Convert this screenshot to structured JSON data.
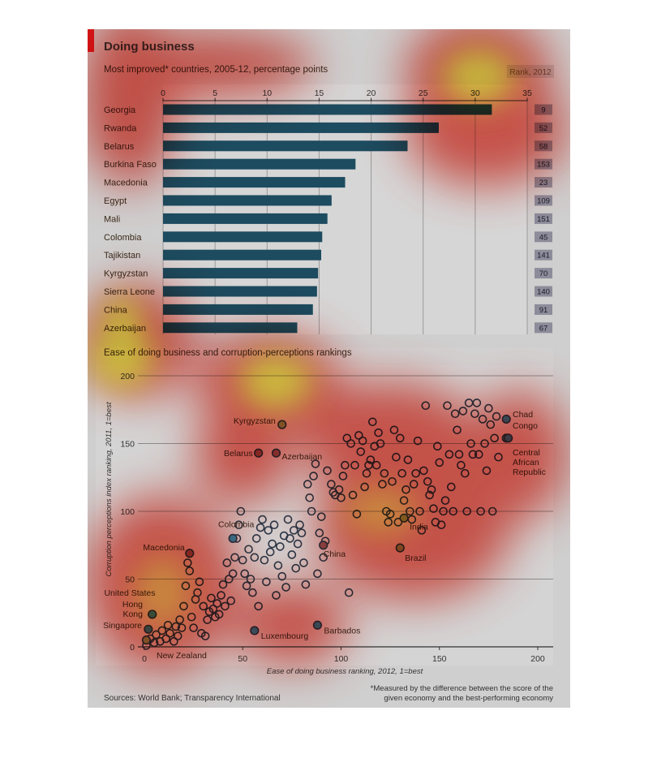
{
  "header": {
    "title": "Doing business",
    "subtitle": "Most improved* countries, 2005-12, percentage points",
    "rank_label": "Rank, 2012",
    "scatter_title": "Ease of doing business and corruption-perceptions rankings",
    "footnote": "*Measured by the difference between the score of the given economy and the best-performing economy",
    "sources": "Sources: World Bank; Transparency International"
  },
  "colors": {
    "panel_bg": "#c9c9c9",
    "bar": "#1d4b5f",
    "rank_box": "#8c8c9a",
    "accent_red": "#d7191c",
    "highlight_blue": "#3d8bb0",
    "highlight_green": "#8aa65c"
  },
  "chart_data": [
    {
      "type": "bar",
      "orientation": "horizontal",
      "categories": [
        "Georgia",
        "Rwanda",
        "Belarus",
        "Burkina Faso",
        "Macedonia",
        "Egypt",
        "Mali",
        "Colombia",
        "Tajikistan",
        "Kyrgyzstan",
        "Sierra Leone",
        "China",
        "Azerbaijan"
      ],
      "values": [
        31.6,
        26.5,
        23.5,
        18.5,
        17.5,
        16.2,
        15.8,
        15.3,
        15.2,
        14.9,
        14.8,
        14.4,
        12.9
      ],
      "ranks": [
        "9",
        "52",
        "58",
        "153",
        "23",
        "109",
        "151",
        "45",
        "141",
        "70",
        "140",
        "91",
        "67"
      ],
      "xlim": [
        0,
        35
      ],
      "xticks": [
        "0",
        "5",
        "10",
        "15",
        "20",
        "25",
        "30",
        "35"
      ]
    },
    {
      "type": "scatter",
      "xlabel": "Ease of doing business ranking, 2012, 1=best",
      "ylabel": "Corruption perceptions index ranking, 2011, 1=best",
      "xlim": [
        0,
        200
      ],
      "ylim": [
        0,
        200
      ],
      "xticks": [
        "0",
        "50",
        "100",
        "150",
        "200"
      ],
      "yticks": [
        "0",
        "50",
        "100",
        "150",
        "200"
      ],
      "labeled_points": [
        {
          "name": "Kyrgyzstan",
          "x": 70,
          "y": 164,
          "color": "green"
        },
        {
          "name": "Chad",
          "x": 184,
          "y": 168,
          "color": "blue"
        },
        {
          "name": "Congo",
          "x": 184,
          "y": 154,
          "color": "blue"
        },
        {
          "name": "Central African Republic",
          "x": 185,
          "y": 154,
          "color": "blue"
        },
        {
          "name": "Belarus",
          "x": 58,
          "y": 143,
          "color": "red"
        },
        {
          "name": "Azerbaijan",
          "x": 67,
          "y": 143,
          "color": "red"
        },
        {
          "name": "Colombia",
          "x": 45,
          "y": 80,
          "color": "blue"
        },
        {
          "name": "India",
          "x": 132,
          "y": 95,
          "color": "green"
        },
        {
          "name": "China",
          "x": 91,
          "y": 75,
          "color": "red"
        },
        {
          "name": "Brazil",
          "x": 130,
          "y": 73,
          "color": "green"
        },
        {
          "name": "Macedonia",
          "x": 23,
          "y": 69,
          "color": "red"
        },
        {
          "name": "United States",
          "x": 4,
          "y": 24,
          "color": "blue"
        },
        {
          "name": "Hong Kong",
          "x": 4,
          "y": 24,
          "color": "blue"
        },
        {
          "name": "Singapore",
          "x": 2,
          "y": 13,
          "color": "blue"
        },
        {
          "name": "New Zealand",
          "x": 1,
          "y": 5,
          "color": "green"
        },
        {
          "name": "Luxembourg",
          "x": 56,
          "y": 12,
          "color": "blue"
        },
        {
          "name": "Barbados",
          "x": 88,
          "y": 16,
          "color": "blue"
        }
      ],
      "points": [
        [
          1,
          1
        ],
        [
          3,
          6
        ],
        [
          5,
          3
        ],
        [
          6,
          9
        ],
        [
          8,
          4
        ],
        [
          9,
          12
        ],
        [
          11,
          6
        ],
        [
          12,
          16
        ],
        [
          13,
          10
        ],
        [
          15,
          4
        ],
        [
          16,
          15
        ],
        [
          17,
          8
        ],
        [
          18,
          20
        ],
        [
          19,
          14
        ],
        [
          20,
          30
        ],
        [
          21,
          45
        ],
        [
          22,
          62
        ],
        [
          23,
          56
        ],
        [
          24,
          22
        ],
        [
          25,
          14
        ],
        [
          26,
          35
        ],
        [
          27,
          40
        ],
        [
          28,
          48
        ],
        [
          29,
          10
        ],
        [
          30,
          30
        ],
        [
          31,
          8
        ],
        [
          32,
          20
        ],
        [
          33,
          26
        ],
        [
          34,
          36
        ],
        [
          35,
          28
        ],
        [
          36,
          22
        ],
        [
          37,
          32
        ],
        [
          38,
          24
        ],
        [
          39,
          38
        ],
        [
          40,
          46
        ],
        [
          41,
          30
        ],
        [
          42,
          62
        ],
        [
          43,
          50
        ],
        [
          44,
          34
        ],
        [
          45,
          54
        ],
        [
          46,
          66
        ],
        [
          47,
          80
        ],
        [
          48,
          90
        ],
        [
          49,
          100
        ],
        [
          50,
          64
        ],
        [
          51,
          54
        ],
        [
          52,
          45
        ],
        [
          53,
          72
        ],
        [
          54,
          50
        ],
        [
          55,
          40
        ],
        [
          56,
          66
        ],
        [
          57,
          80
        ],
        [
          58,
          30
        ],
        [
          59,
          88
        ],
        [
          60,
          94
        ],
        [
          61,
          64
        ],
        [
          62,
          48
        ],
        [
          63,
          86
        ],
        [
          64,
          70
        ],
        [
          65,
          76
        ],
        [
          66,
          90
        ],
        [
          67,
          38
        ],
        [
          68,
          60
        ],
        [
          69,
          74
        ],
        [
          70,
          52
        ],
        [
          71,
          82
        ],
        [
          72,
          44
        ],
        [
          73,
          94
        ],
        [
          74,
          80
        ],
        [
          75,
          68
        ],
        [
          76,
          86
        ],
        [
          77,
          58
        ],
        [
          78,
          76
        ],
        [
          79,
          90
        ],
        [
          80,
          84
        ],
        [
          81,
          62
        ],
        [
          82,
          46
        ],
        [
          83,
          120
        ],
        [
          84,
          110
        ],
        [
          85,
          100
        ],
        [
          86,
          126
        ],
        [
          87,
          135
        ],
        [
          88,
          54
        ],
        [
          89,
          84
        ],
        [
          90,
          96
        ],
        [
          91,
          66
        ],
        [
          92,
          78
        ],
        [
          93,
          130
        ],
        [
          95,
          120
        ],
        [
          96,
          114
        ],
        [
          97,
          112
        ],
        [
          99,
          116
        ],
        [
          100,
          110
        ],
        [
          101,
          126
        ],
        [
          102,
          134
        ],
        [
          103,
          154
        ],
        [
          104,
          40
        ],
        [
          105,
          150
        ],
        [
          106,
          112
        ],
        [
          107,
          134
        ],
        [
          108,
          98
        ],
        [
          109,
          156
        ],
        [
          110,
          144
        ],
        [
          111,
          152
        ],
        [
          112,
          118
        ],
        [
          113,
          128
        ],
        [
          114,
          134
        ],
        [
          115,
          138
        ],
        [
          116,
          166
        ],
        [
          117,
          148
        ],
        [
          118,
          134
        ],
        [
          119,
          158
        ],
        [
          120,
          150
        ],
        [
          121,
          120
        ],
        [
          122,
          128
        ],
        [
          123,
          100
        ],
        [
          124,
          92
        ],
        [
          125,
          98
        ],
        [
          126,
          122
        ],
        [
          127,
          160
        ],
        [
          128,
          140
        ],
        [
          129,
          92
        ],
        [
          130,
          154
        ],
        [
          131,
          128
        ],
        [
          132,
          108
        ],
        [
          133,
          116
        ],
        [
          134,
          138
        ],
        [
          135,
          100
        ],
        [
          136,
          94
        ],
        [
          137,
          120
        ],
        [
          138,
          128
        ],
        [
          139,
          152
        ],
        [
          140,
          100
        ],
        [
          141,
          86
        ],
        [
          142,
          130
        ],
        [
          143,
          178
        ],
        [
          144,
          122
        ],
        [
          145,
          112
        ],
        [
          146,
          116
        ],
        [
          147,
          102
        ],
        [
          148,
          92
        ],
        [
          149,
          148
        ],
        [
          150,
          136
        ],
        [
          151,
          90
        ],
        [
          152,
          100
        ],
        [
          153,
          108
        ],
        [
          154,
          178
        ],
        [
          155,
          142
        ],
        [
          156,
          118
        ],
        [
          157,
          100
        ],
        [
          158,
          172
        ],
        [
          159,
          160
        ],
        [
          160,
          142
        ],
        [
          161,
          134
        ],
        [
          162,
          174
        ],
        [
          163,
          128
        ],
        [
          164,
          100
        ],
        [
          165,
          180
        ],
        [
          166,
          150
        ],
        [
          167,
          142
        ],
        [
          168,
          172
        ],
        [
          169,
          180
        ],
        [
          170,
          142
        ],
        [
          171,
          100
        ],
        [
          172,
          168
        ],
        [
          173,
          150
        ],
        [
          174,
          130
        ],
        [
          175,
          176
        ],
        [
          176,
          164
        ],
        [
          177,
          100
        ],
        [
          178,
          154
        ],
        [
          179,
          170
        ],
        [
          180,
          140
        ]
      ]
    }
  ]
}
